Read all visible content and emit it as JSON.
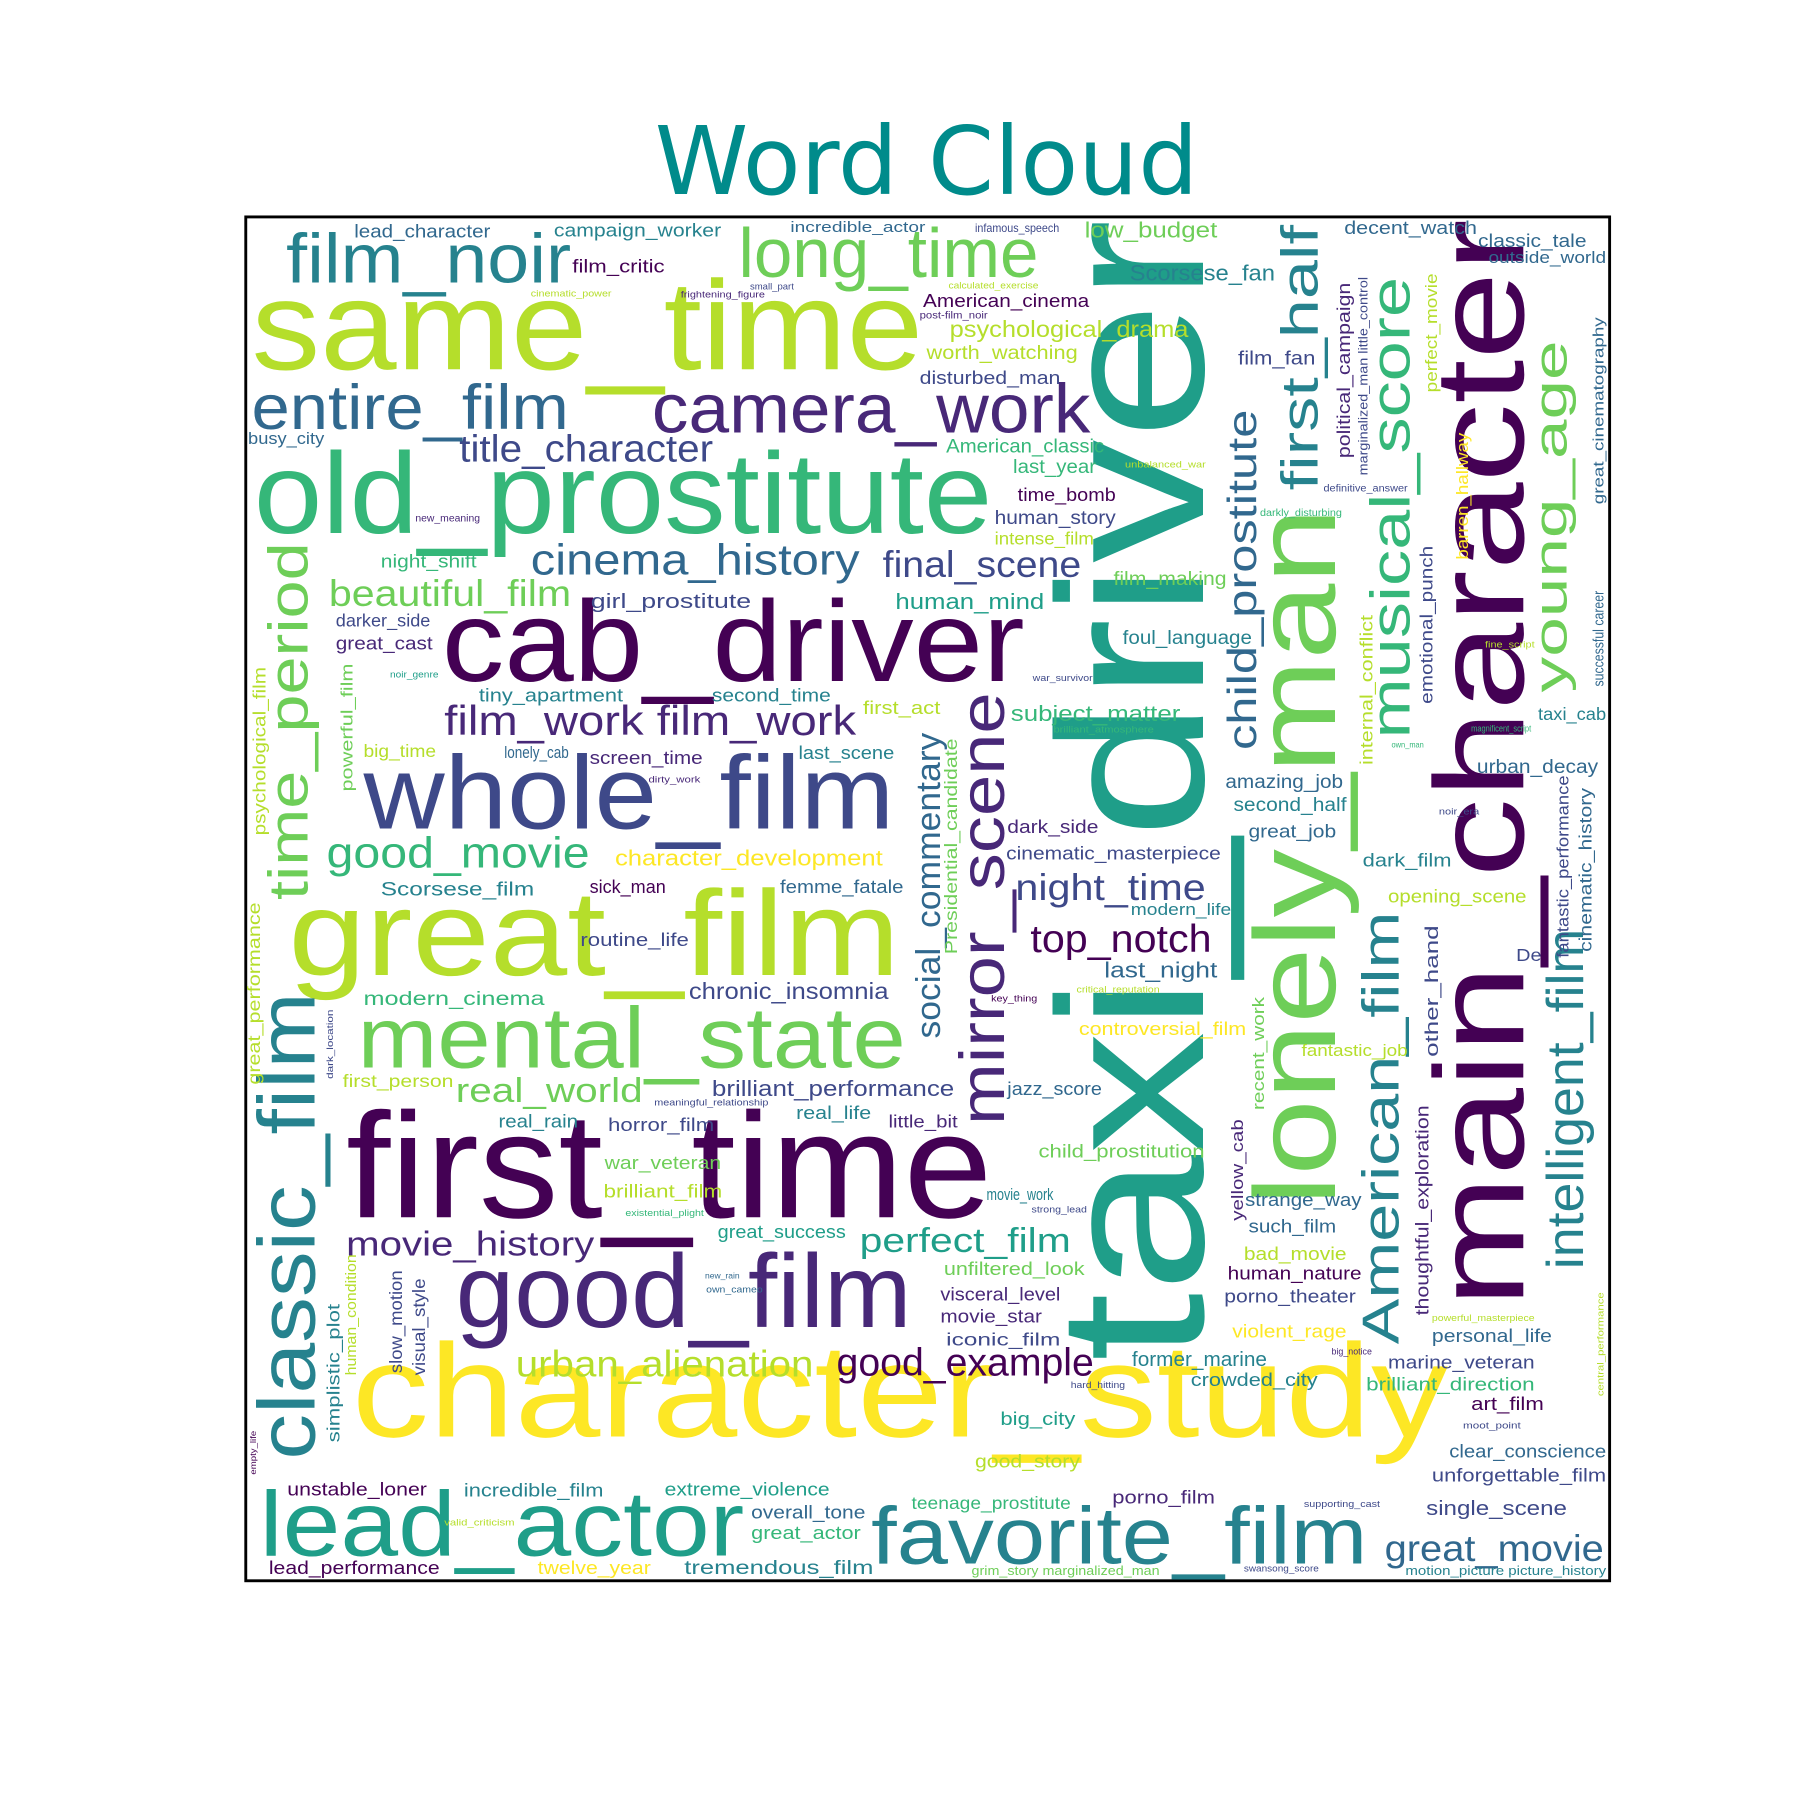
{
  "chart_data": {
    "type": "wordcloud",
    "title": "Word Cloud",
    "words": [
      {
        "text": "taxi_driver",
        "weight": 180,
        "color": "#1f9e89"
      },
      {
        "text": "main_character",
        "weight": 110,
        "color": "#440154"
      },
      {
        "text": "lonely_man",
        "weight": 100,
        "color": "#6ece58"
      },
      {
        "text": "character_study",
        "weight": 115,
        "color": "#fde725"
      },
      {
        "text": "first_time",
        "weight": 130,
        "color": "#440154"
      },
      {
        "text": "same_time",
        "weight": 110,
        "color": "#b5de2b"
      },
      {
        "text": "old_prostitute",
        "weight": 100,
        "color": "#35b779"
      },
      {
        "text": "cab_driver",
        "weight": 100,
        "color": "#440154"
      },
      {
        "text": "great_film",
        "weight": 105,
        "color": "#b5de2b"
      },
      {
        "text": "whole_film",
        "weight": 90,
        "color": "#3e4989"
      },
      {
        "text": "good_film",
        "weight": 90,
        "color": "#482878"
      },
      {
        "text": "mental_state",
        "weight": 75,
        "color": "#6ece58"
      },
      {
        "text": "lead_actor",
        "weight": 80,
        "color": "#1f9e89"
      },
      {
        "text": "favorite_film",
        "weight": 70,
        "color": "#26828e"
      },
      {
        "text": "camera_work",
        "weight": 60,
        "color": "#482878"
      },
      {
        "text": "entire_film",
        "weight": 55,
        "color": "#31688e"
      },
      {
        "text": "film_noir",
        "weight": 60,
        "color": "#26828e"
      },
      {
        "text": "long_time",
        "weight": 60,
        "color": "#6ece58"
      },
      {
        "text": "classic_film",
        "weight": 70,
        "color": "#26828e"
      },
      {
        "text": "time_period",
        "weight": 48,
        "color": "#6ece58"
      },
      {
        "text": "mirror_scene",
        "weight": 55,
        "color": "#482878"
      },
      {
        "text": "social_commentary",
        "weight": 30,
        "color": "#31688e"
      },
      {
        "text": "child_prostitute",
        "weight": 35,
        "color": "#31688e"
      },
      {
        "text": "first_half",
        "weight": 45,
        "color": "#26828e"
      },
      {
        "text": "musical_score",
        "weight": 48,
        "color": "#35b779"
      },
      {
        "text": "young_age",
        "weight": 40,
        "color": "#6ece58"
      },
      {
        "text": "American_film",
        "weight": 45,
        "color": "#26828e"
      },
      {
        "text": "intelligent_film",
        "weight": 45,
        "color": "#26828e"
      },
      {
        "text": "cinema_history",
        "weight": 38,
        "color": "#31688e"
      },
      {
        "text": "final_scene",
        "weight": 32,
        "color": "#3e4989"
      },
      {
        "text": "title_character",
        "weight": 33,
        "color": "#3e4989"
      },
      {
        "text": "beautiful_film",
        "weight": 32,
        "color": "#6ece58"
      },
      {
        "text": "film_work film_work",
        "weight": 36,
        "color": "#482878"
      },
      {
        "text": "good_movie",
        "weight": 38,
        "color": "#35b779"
      },
      {
        "text": "night_time",
        "weight": 32,
        "color": "#3e4989"
      },
      {
        "text": "top_notch",
        "weight": 34,
        "color": "#440154"
      },
      {
        "text": "good_example",
        "weight": 34,
        "color": "#440154"
      },
      {
        "text": "urban_alienation",
        "weight": 32,
        "color": "#b5de2b"
      },
      {
        "text": "movie_history",
        "weight": 30,
        "color": "#482878"
      },
      {
        "text": "perfect_film",
        "weight": 30,
        "color": "#1f9e89"
      },
      {
        "text": "real_world",
        "weight": 30,
        "color": "#6ece58"
      },
      {
        "text": "great_movie",
        "weight": 32,
        "color": "#31688e"
      },
      {
        "text": "chronic_insomnia",
        "weight": 20,
        "color": "#3e4989"
      },
      {
        "text": "brilliant_performance",
        "weight": 19,
        "color": "#3e4989"
      },
      {
        "text": "character_development",
        "weight": 19,
        "color": "#fde725"
      },
      {
        "text": "psychological_drama",
        "weight": 20,
        "color": "#b5de2b"
      },
      {
        "text": "Scorsese_fan",
        "weight": 19,
        "color": "#26828e"
      },
      {
        "text": "low_budget",
        "weight": 19,
        "color": "#6ece58"
      },
      {
        "text": "lead_character",
        "weight": 16,
        "color": "#31688e"
      },
      {
        "text": "campaign_worker",
        "weight": 16,
        "color": "#26828e"
      },
      {
        "text": "incredible_actor",
        "weight": 13,
        "color": "#31688e"
      },
      {
        "text": "infamous_speech",
        "weight": 10,
        "color": "#3e4989"
      },
      {
        "text": "decent_watch",
        "weight": 16,
        "color": "#31688e"
      },
      {
        "text": "classic_tale",
        "weight": 16,
        "color": "#31688e"
      },
      {
        "text": "outside_world",
        "weight": 14,
        "color": "#31688e"
      },
      {
        "text": "film_critic",
        "weight": 16,
        "color": "#440154"
      },
      {
        "text": "small_part",
        "weight": 8,
        "color": "#3e4989"
      },
      {
        "text": "calculated_exercise",
        "weight": 8,
        "color": "#b5de2b"
      },
      {
        "text": "cinematic_power",
        "weight": 8,
        "color": "#b5de2b"
      },
      {
        "text": "frightening_figure",
        "weight": 8,
        "color": "#482878"
      },
      {
        "text": "American_cinema",
        "weight": 16,
        "color": "#440154"
      },
      {
        "text": "post-film_noir",
        "weight": 9,
        "color": "#482878"
      },
      {
        "text": "worth_watching",
        "weight": 17,
        "color": "#b5de2b"
      },
      {
        "text": "film_fan",
        "weight": 17,
        "color": "#3e4989"
      },
      {
        "text": "disturbed_man",
        "weight": 16,
        "color": "#3e4989"
      },
      {
        "text": "political_campaign",
        "weight": 16,
        "color": "#482878"
      },
      {
        "text": "marginalized_man little_control",
        "weight": 11,
        "color": "#3e4989"
      },
      {
        "text": "perfect_movie",
        "weight": 14,
        "color": "#b5de2b"
      },
      {
        "text": "great_cinematography",
        "weight": 13,
        "color": "#31688e"
      },
      {
        "text": "busy_city",
        "weight": 14,
        "color": "#31688e"
      },
      {
        "text": "American_classic",
        "weight": 17,
        "color": "#35b779"
      },
      {
        "text": "last_year",
        "weight": 17,
        "color": "#35b779"
      },
      {
        "text": "unbalanced_war",
        "weight": 8,
        "color": "#b5de2b"
      },
      {
        "text": "barren_hallway",
        "weight": 14,
        "color": "#fde725"
      },
      {
        "text": "definitive_answer",
        "weight": 9,
        "color": "#3e4989"
      },
      {
        "text": "time_bomb",
        "weight": 16,
        "color": "#440154"
      },
      {
        "text": "human_story",
        "weight": 17,
        "color": "#3e4989"
      },
      {
        "text": "new_meaning",
        "weight": 9,
        "color": "#482878"
      },
      {
        "text": "darkly_disturbing",
        "weight": 9,
        "color": "#35b779"
      },
      {
        "text": "intense_film",
        "weight": 15,
        "color": "#b5de2b"
      },
      {
        "text": "night_shift",
        "weight": 16,
        "color": "#35b779"
      },
      {
        "text": "human_mind",
        "weight": 19,
        "color": "#1f9e89"
      },
      {
        "text": "film_making",
        "weight": 17,
        "color": "#6ece58"
      },
      {
        "text": "emotional_punch",
        "weight": 15,
        "color": "#3e4989"
      },
      {
        "text": "successful career",
        "weight": 13,
        "color": "#31688e"
      },
      {
        "text": "girl_prostitute",
        "weight": 18,
        "color": "#3e4989"
      },
      {
        "text": "darker_side",
        "weight": 15,
        "color": "#3e4989"
      },
      {
        "text": "great_cast",
        "weight": 16,
        "color": "#482878"
      },
      {
        "text": "foul_language",
        "weight": 17,
        "color": "#26828e"
      },
      {
        "text": "noir_genre",
        "weight": 8,
        "color": "#1f9e89"
      },
      {
        "text": "internal_conflict",
        "weight": 15,
        "color": "#b5de2b"
      },
      {
        "text": "fine_script",
        "weight": 8,
        "color": "#b5de2b"
      },
      {
        "text": "war_survivor",
        "weight": 8,
        "color": "#3e4989"
      },
      {
        "text": "psychological_film",
        "weight": 15,
        "color": "#b5de2b"
      },
      {
        "text": "powerful_film",
        "weight": 14,
        "color": "#6ece58"
      },
      {
        "text": "tiny_apartment",
        "weight": 16,
        "color": "#26828e"
      },
      {
        "text": "second_time",
        "weight": 16,
        "color": "#26828e"
      },
      {
        "text": "first_act",
        "weight": 16,
        "color": "#b5de2b"
      },
      {
        "text": "subject_matter",
        "weight": 19,
        "color": "#35b779"
      },
      {
        "text": "taxi_cab",
        "weight": 15,
        "color": "#26828e"
      },
      {
        "text": "brilliant_atmosphere",
        "weight": 8,
        "color": "#35b779"
      },
      {
        "text": "magnificent_script",
        "weight": 8,
        "color": "#35b779"
      },
      {
        "text": "own_man",
        "weight": 7,
        "color": "#35b779"
      },
      {
        "text": "big_time",
        "weight": 15,
        "color": "#b5de2b"
      },
      {
        "text": "lonely_cab",
        "weight": 14,
        "color": "#31688e"
      },
      {
        "text": "screen_time",
        "weight": 16,
        "color": "#482878"
      },
      {
        "text": "last_scene",
        "weight": 16,
        "color": "#26828e"
      },
      {
        "text": "Presidential_candidate",
        "weight": 15,
        "color": "#6ece58"
      },
      {
        "text": "urban_decay",
        "weight": 17,
        "color": "#31688e"
      },
      {
        "text": "dirty_work",
        "weight": 8,
        "color": "#482878"
      },
      {
        "text": "amazing_job",
        "weight": 17,
        "color": "#31688e"
      },
      {
        "text": "fantastic_performance",
        "weight": 14,
        "color": "#3e4989"
      },
      {
        "text": "cinematic_history",
        "weight": 15,
        "color": "#31688e"
      },
      {
        "text": "noir_era",
        "weight": 8,
        "color": "#3e4989"
      },
      {
        "text": "second_half",
        "weight": 17,
        "color": "#26828e"
      },
      {
        "text": "dark_side",
        "weight": 16,
        "color": "#482878"
      },
      {
        "text": "great_job",
        "weight": 16,
        "color": "#31688e"
      },
      {
        "text": "cinematic_masterpiece",
        "weight": 16,
        "color": "#3e4989"
      },
      {
        "text": "dark_film",
        "weight": 16,
        "color": "#26828e"
      },
      {
        "text": "Scorsese_film",
        "weight": 17,
        "color": "#26828e"
      },
      {
        "text": "sick_man",
        "weight": 16,
        "color": "#440154"
      },
      {
        "text": "femme_fatale",
        "weight": 16,
        "color": "#31688e"
      },
      {
        "text": "opening_scene",
        "weight": 16,
        "color": "#b5de2b"
      },
      {
        "text": "great_performance",
        "weight": 15,
        "color": "#b5de2b"
      },
      {
        "text": "modern_life",
        "weight": 14,
        "color": "#26828e"
      },
      {
        "text": "routine_life",
        "weight": 16,
        "color": "#3e4989"
      },
      {
        "text": "last_night",
        "weight": 19,
        "color": "#31688e"
      },
      {
        "text": "De",
        "weight": 15,
        "color": "#3e4989"
      },
      {
        "text": "other_hand",
        "weight": 16,
        "color": "#3e4989"
      },
      {
        "text": "critical_reputation",
        "weight": 8,
        "color": "#b5de2b"
      },
      {
        "text": "key_thing",
        "weight": 8,
        "color": "#440154"
      },
      {
        "text": "modern_cinema",
        "weight": 17,
        "color": "#35b779"
      },
      {
        "text": "dark_location",
        "weight": 8,
        "color": "#3e4989"
      },
      {
        "text": "recent_work",
        "weight": 14,
        "color": "#6ece58"
      },
      {
        "text": "controversial_film",
        "weight": 16,
        "color": "#fde725"
      },
      {
        "text": "fantastic_job",
        "weight": 14,
        "color": "#b5de2b"
      },
      {
        "text": "thoughtful_exploration",
        "weight": 16,
        "color": "#482878"
      },
      {
        "text": "first_person",
        "weight": 15,
        "color": "#b5de2b"
      },
      {
        "text": "jazz_score",
        "weight": 16,
        "color": "#31688e"
      },
      {
        "text": "meaningful_relationship",
        "weight": 8,
        "color": "#3e4989"
      },
      {
        "text": "real_life",
        "weight": 16,
        "color": "#26828e"
      },
      {
        "text": "little_bit",
        "weight": 15,
        "color": "#482878"
      },
      {
        "text": "yellow_cab",
        "weight": 14,
        "color": "#482878"
      },
      {
        "text": "real_rain",
        "weight": 16,
        "color": "#26828e"
      },
      {
        "text": "horror_film",
        "weight": 16,
        "color": "#3e4989"
      },
      {
        "text": "child_prostitution",
        "weight": 16,
        "color": "#6ece58"
      },
      {
        "text": "war_veteran",
        "weight": 16,
        "color": "#6ece58"
      },
      {
        "text": "brilliant_film",
        "weight": 16,
        "color": "#b5de2b"
      },
      {
        "text": "movie_work",
        "weight": 14,
        "color": "#26828e"
      },
      {
        "text": "strange_way",
        "weight": 16,
        "color": "#31688e"
      },
      {
        "text": "strong_lead",
        "weight": 8,
        "color": "#3e4989"
      },
      {
        "text": "existential_plight",
        "weight": 8,
        "color": "#35b779"
      },
      {
        "text": "such_film",
        "weight": 16,
        "color": "#31688e"
      },
      {
        "text": "great_success",
        "weight": 16,
        "color": "#1f9e89"
      },
      {
        "text": "bad_movie",
        "weight": 16,
        "color": "#b5de2b"
      },
      {
        "text": "unfiltered_look",
        "weight": 16,
        "color": "#6ece58"
      },
      {
        "text": "new_rain",
        "weight": 7,
        "color": "#31688e"
      },
      {
        "text": "own_cameo",
        "weight": 8,
        "color": "#31688e"
      },
      {
        "text": "human_nature",
        "weight": 16,
        "color": "#440154"
      },
      {
        "text": "visceral_level",
        "weight": 16,
        "color": "#482878"
      },
      {
        "text": "porno_theater",
        "weight": 16,
        "color": "#3e4989"
      },
      {
        "text": "human_condition",
        "weight": 13,
        "color": "#b5de2b"
      },
      {
        "text": "slow_motion",
        "weight": 15,
        "color": "#3e4989"
      },
      {
        "text": "visual_style",
        "weight": 15,
        "color": "#3e4989"
      },
      {
        "text": "simplistic_plot",
        "weight": 15,
        "color": "#26828e"
      },
      {
        "text": "movie_star",
        "weight": 16,
        "color": "#482878"
      },
      {
        "text": "powerful_masterpiece",
        "weight": 8,
        "color": "#b5de2b"
      },
      {
        "text": "violent_rage",
        "weight": 16,
        "color": "#fde725"
      },
      {
        "text": "personal_life",
        "weight": 16,
        "color": "#31688e"
      },
      {
        "text": "iconic_film",
        "weight": 15,
        "color": "#3e4989"
      },
      {
        "text": "big_notice",
        "weight": 8,
        "color": "#482878"
      },
      {
        "text": "former_marine",
        "weight": 18,
        "color": "#26828e"
      },
      {
        "text": "marine_veteran",
        "weight": 16,
        "color": "#3e4989"
      },
      {
        "text": "central_performance",
        "weight": 8,
        "color": "#b5de2b"
      },
      {
        "text": "crowded_city",
        "weight": 16,
        "color": "#26828e"
      },
      {
        "text": "hard_hitting",
        "weight": 8,
        "color": "#3e4989"
      },
      {
        "text": "brilliant_direction",
        "weight": 16,
        "color": "#35b779"
      },
      {
        "text": "big_city",
        "weight": 16,
        "color": "#1f9e89"
      },
      {
        "text": "art_film",
        "weight": 16,
        "color": "#440154"
      },
      {
        "text": "moot_point",
        "weight": 8,
        "color": "#3e4989"
      },
      {
        "text": "clear_conscience",
        "weight": 16,
        "color": "#31688e"
      },
      {
        "text": "empty_life",
        "weight": 7,
        "color": "#440154"
      },
      {
        "text": "good_story",
        "weight": 16,
        "color": "#b5de2b"
      },
      {
        "text": "unforgettable_film",
        "weight": 16,
        "color": "#3e4989"
      },
      {
        "text": "unstable_loner",
        "weight": 16,
        "color": "#440154"
      },
      {
        "text": "incredible_film",
        "weight": 16,
        "color": "#26828e"
      },
      {
        "text": "extreme_violence",
        "weight": 16,
        "color": "#1f9e89"
      },
      {
        "text": "porno_film",
        "weight": 16,
        "color": "#482878"
      },
      {
        "text": "teenage_prostitute",
        "weight": 15,
        "color": "#35b779"
      },
      {
        "text": "supporting_cast",
        "weight": 8,
        "color": "#3e4989"
      },
      {
        "text": "single_scene",
        "weight": 18,
        "color": "#3e4989"
      },
      {
        "text": "overall_tone",
        "weight": 16,
        "color": "#31688e"
      },
      {
        "text": "valid_criticism",
        "weight": 8,
        "color": "#b5de2b"
      },
      {
        "text": "great_actor",
        "weight": 16,
        "color": "#35b779"
      },
      {
        "text": "lead_performance",
        "weight": 16,
        "color": "#440154"
      },
      {
        "text": "twelve_year",
        "weight": 16,
        "color": "#fde725"
      },
      {
        "text": "tremendous_film",
        "weight": 17,
        "color": "#26828e"
      },
      {
        "text": "grim_story marginalized_man",
        "weight": 11,
        "color": "#6ece58"
      },
      {
        "text": "swansong_score",
        "weight": 8,
        "color": "#3e4989"
      },
      {
        "text": "motion_picture picture_history",
        "weight": 11,
        "color": "#26828e"
      }
    ]
  }
}
